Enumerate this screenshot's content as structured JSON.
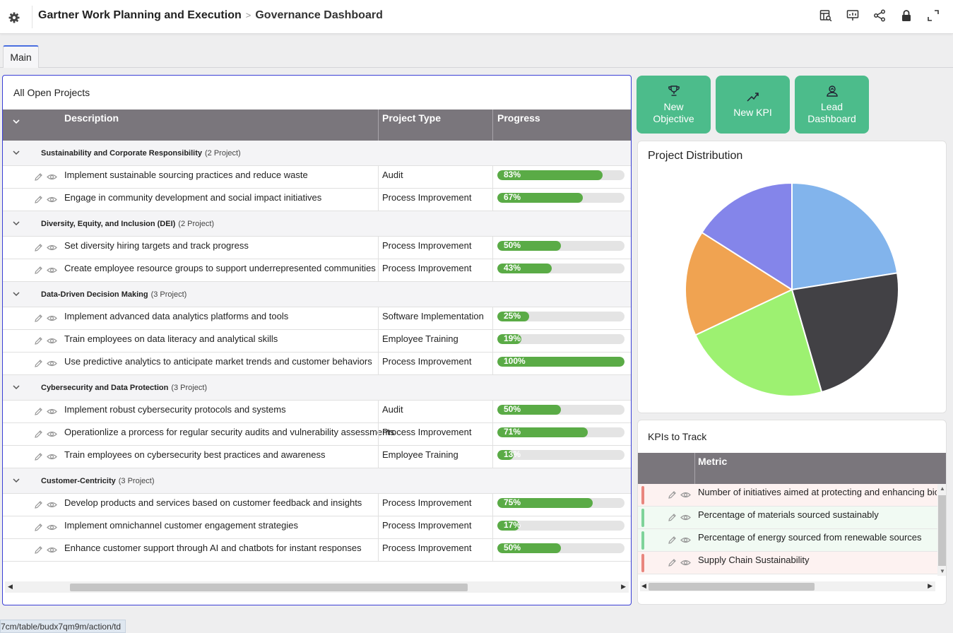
{
  "header": {
    "app_title": "Gartner Work Planning and Execution",
    "separator": ">",
    "page_title": "Governance Dashboard"
  },
  "tabs": [
    {
      "label": "Main"
    }
  ],
  "projects": {
    "title": "All Open Projects",
    "columns": {
      "description": "Description",
      "project_type": "Project Type",
      "progress": "Progress"
    },
    "groups": [
      {
        "name": "Sustainability and Corporate Responsibility",
        "count": "(2 Project)",
        "rows": [
          {
            "description": "Implement sustainable sourcing practices and reduce waste",
            "type": "Audit",
            "progress": 83,
            "progress_label": "83%"
          },
          {
            "description": "Engage in community development and social impact initiatives",
            "type": "Process Improvement",
            "progress": 67,
            "progress_label": "67%"
          }
        ]
      },
      {
        "name": "Diversity, Equity, and Inclusion (DEI)",
        "count": "(2 Project)",
        "rows": [
          {
            "description": "Set diversity hiring targets and track progress",
            "type": "Process Improvement",
            "progress": 50,
            "progress_label": "50%"
          },
          {
            "description": "Create employee resource groups to support underrepresented communities",
            "type": "Process Improvement",
            "progress": 43,
            "progress_label": "43%"
          }
        ]
      },
      {
        "name": "Data-Driven Decision Making",
        "count": "(3 Project)",
        "rows": [
          {
            "description": "Implement advanced data analytics platforms and tools",
            "type": "Software Implementation",
            "progress": 25,
            "progress_label": "25%"
          },
          {
            "description": "Train employees on data literacy and analytical skills",
            "type": "Employee Training",
            "progress": 19,
            "progress_label": "19%"
          },
          {
            "description": "Use predictive analytics to anticipate market trends and customer behaviors",
            "type": "Process Improvement",
            "progress": 100,
            "progress_label": "100%"
          }
        ]
      },
      {
        "name": "Cybersecurity and Data Protection",
        "count": "(3 Project)",
        "rows": [
          {
            "description": "Implement robust cybersecurity protocols and systems",
            "type": "Audit",
            "progress": 50,
            "progress_label": "50%"
          },
          {
            "description": "Operationlize a prorcess for regular security audits and vulnerability assessments",
            "type": "Process Improvement",
            "progress": 71,
            "progress_label": "71%"
          },
          {
            "description": "Train employees on cybersecurity best practices and awareness",
            "type": "Employee Training",
            "progress": 13,
            "progress_label": "13%"
          }
        ]
      },
      {
        "name": "Customer-Centricity",
        "count": "(3 Project)",
        "rows": [
          {
            "description": "Develop products and services based on customer feedback and insights",
            "type": "Process Improvement",
            "progress": 75,
            "progress_label": "75%"
          },
          {
            "description": "Implement omnichannel customer engagement strategies",
            "type": "Process Improvement",
            "progress": 17,
            "progress_label": "17%"
          },
          {
            "description": "Enhance customer support through AI and chatbots for instant responses",
            "type": "Process Improvement",
            "progress": 50,
            "progress_label": "50%"
          }
        ]
      }
    ]
  },
  "actions": [
    {
      "label_line1": "New",
      "label_line2": "Objective",
      "icon": "trophy-icon"
    },
    {
      "label_line1": "New KPI",
      "label_line2": "",
      "icon": "trend-up-icon"
    },
    {
      "label_line1": "Lead",
      "label_line2": "Dashboard",
      "icon": "lead-dashboard-icon"
    }
  ],
  "chart_data": {
    "type": "pie",
    "title": "Project Distribution",
    "values": [
      22.5,
      23,
      22.5,
      16,
      16
    ],
    "colors": [
      "#82b4ec",
      "#424145",
      "#9df171",
      "#f0a351",
      "#8485ea"
    ]
  },
  "kpis": {
    "title": "KPIs to Track",
    "column": "Metric",
    "rows": [
      {
        "name": "Number of initiatives aimed at protecting and enhancing biodiversity",
        "status_color": "#e9867e",
        "row_bg": "#fdf2f1"
      },
      {
        "name": "Percentage of materials sourced sustainably",
        "status_color": "#7fd39a",
        "row_bg": "#f1faf3"
      },
      {
        "name": "Percentage of energy sourced from renewable sources",
        "status_color": "#7fd39a",
        "row_bg": "#f1faf3"
      },
      {
        "name": "Supply Chain Sustainability",
        "status_color": "#e9867e",
        "row_bg": "#fdf2f1"
      }
    ]
  },
  "status_url": "7cm/table/budx7qm9m/action/td",
  "colors": {
    "accent_green": "#4cbc8b",
    "progress_green": "#5aab46",
    "grid_header": "#7a767c",
    "focus_border": "#3a3fd6"
  }
}
